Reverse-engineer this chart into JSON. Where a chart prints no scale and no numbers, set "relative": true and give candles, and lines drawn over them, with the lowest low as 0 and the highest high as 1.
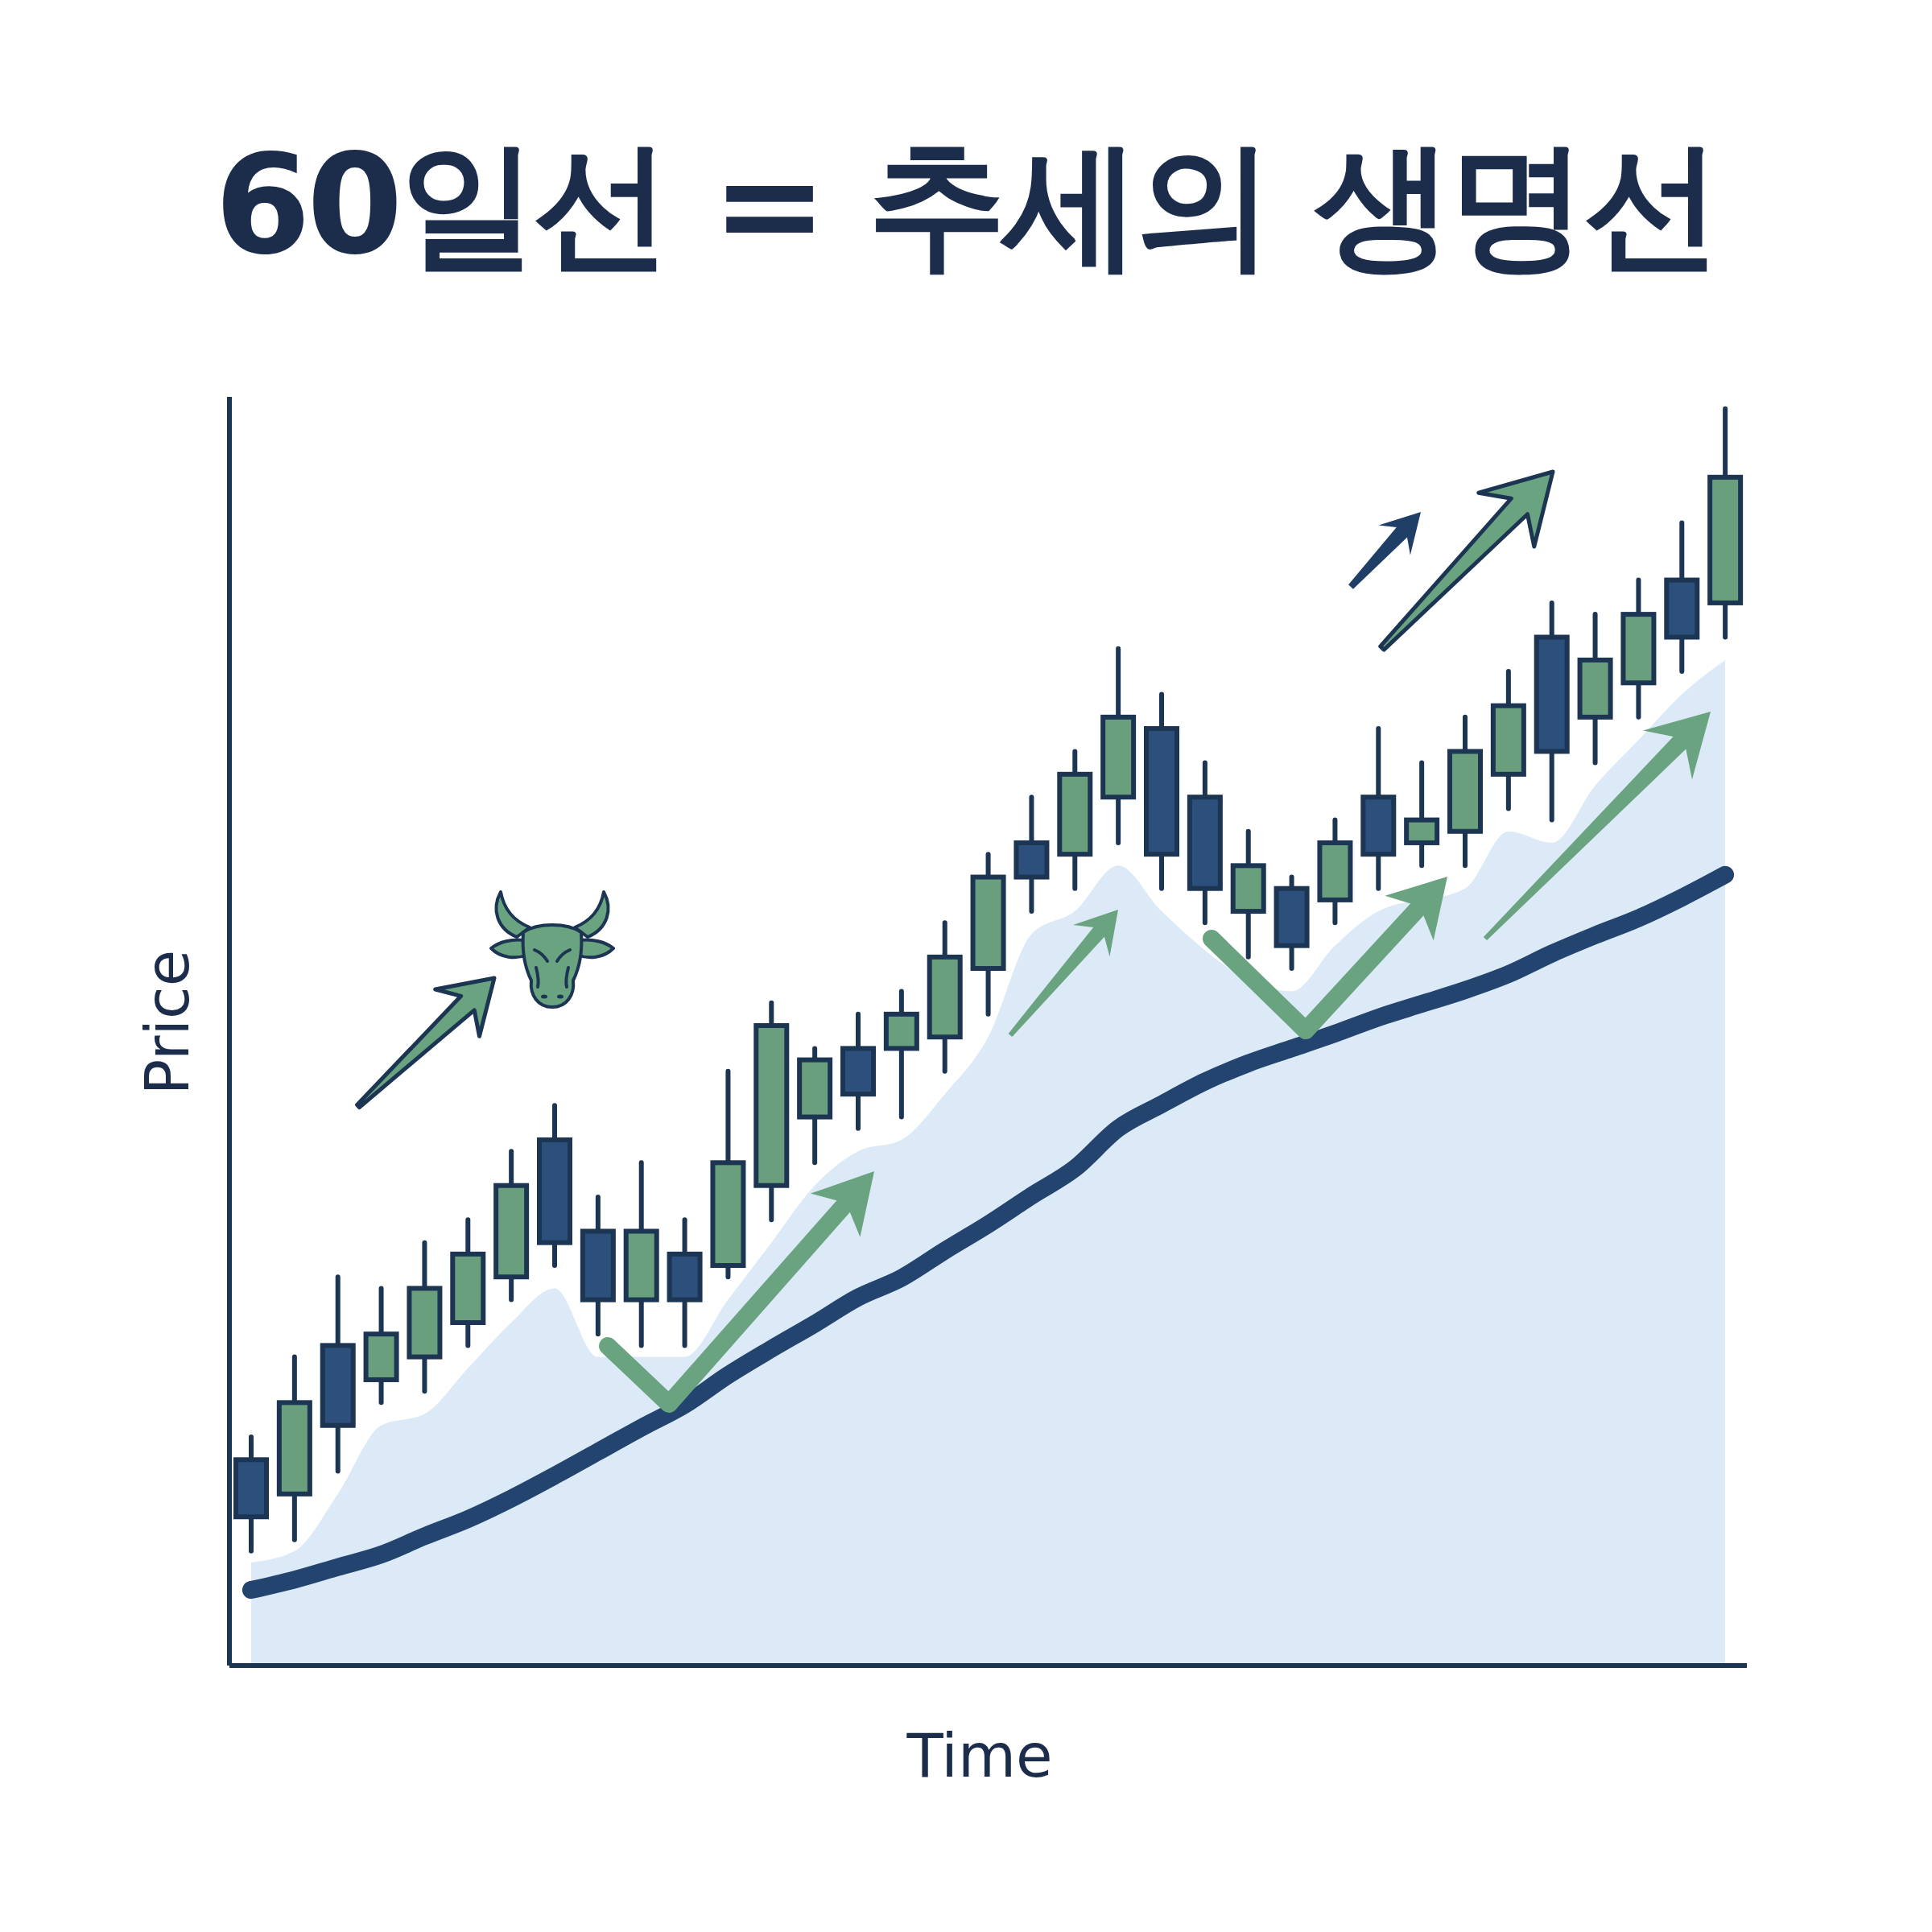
{
  "chart_data": {
    "type": "candlestick",
    "title": "60일선 = 추세의 생명선",
    "xlabel": "Time",
    "ylabel": "Price",
    "relative": true,
    "categories": [
      null,
      null,
      null,
      null,
      null,
      null,
      null,
      null,
      null,
      null,
      null,
      null,
      null,
      null,
      null,
      null,
      null,
      null,
      null,
      null,
      null,
      null,
      null,
      null,
      null,
      null,
      null,
      null,
      null,
      null,
      null,
      null,
      null,
      null,
      null
    ],
    "ohlc": [
      [
        0.08,
        0.1,
        0,
        0.03
      ],
      [
        0.05,
        0.17,
        0.01,
        0.13
      ],
      [
        0.18,
        0.24,
        0.07,
        0.11
      ],
      [
        0.15,
        0.23,
        0.13,
        0.19
      ],
      [
        0.17,
        0.27,
        0.14,
        0.23
      ],
      [
        0.2,
        0.29,
        0.18,
        0.26
      ],
      [
        0.24,
        0.35,
        0.22,
        0.32
      ],
      [
        0.36,
        0.39,
        0.25,
        0.27
      ],
      [
        0.28,
        0.31,
        0.19,
        0.22
      ],
      [
        0.22,
        0.34,
        0.18,
        0.28
      ],
      [
        0.26,
        0.29,
        0.18,
        0.22
      ],
      [
        0.25,
        0.42,
        0.24,
        0.34
      ],
      [
        0.32,
        0.48,
        0.29,
        0.46
      ],
      [
        0.38,
        0.44,
        0.34,
        0.43
      ],
      [
        0.44,
        0.47,
        0.37,
        0.4
      ],
      [
        0.44,
        0.49,
        0.38,
        0.47
      ],
      [
        0.45,
        0.55,
        0.42,
        0.52
      ],
      [
        0.51,
        0.61,
        0.47,
        0.59
      ],
      [
        0.62,
        0.66,
        0.56,
        0.59
      ],
      [
        0.61,
        0.7,
        0.58,
        0.68
      ],
      [
        0.66,
        0.79,
        0.62,
        0.73
      ],
      [
        0.72,
        0.75,
        0.58,
        0.61
      ],
      [
        0.66,
        0.69,
        0.55,
        0.58
      ],
      [
        0.56,
        0.63,
        0.52,
        0.6
      ],
      [
        0.58,
        0.59,
        0.51,
        0.53
      ],
      [
        0.57,
        0.64,
        0.55,
        0.62
      ],
      [
        0.66,
        0.72,
        0.58,
        0.61
      ],
      [
        0.62,
        0.69,
        0.6,
        0.64
      ],
      [
        0.63,
        0.73,
        0.6,
        0.7
      ],
      [
        0.68,
        0.77,
        0.65,
        0.74
      ],
      [
        0.8,
        0.83,
        0.64,
        0.7
      ],
      [
        0.73,
        0.82,
        0.69,
        0.78
      ],
      [
        0.76,
        0.85,
        0.73,
        0.82
      ],
      [
        0.85,
        0.9,
        0.77,
        0.8
      ],
      [
        0.83,
        1,
        0.8,
        0.94
      ]
    ],
    "colors": [
      "#2c4f7c",
      "#6a9f7d",
      "#2c4f7c",
      "#6a9f7d",
      "#6a9f7d",
      "#6a9f7d",
      "#6a9f7d",
      "#2c4f7c",
      "#2c4f7c",
      "#6a9f7d",
      "#2c4f7c",
      "#6a9f7d",
      "#6a9f7d",
      "#6a9f7d",
      "#2c4f7c",
      "#6a9f7d",
      "#6a9f7d",
      "#6a9f7d",
      "#2c4f7c",
      "#6a9f7d",
      "#6a9f7d",
      "#2c4f7c",
      "#2c4f7c",
      "#6a9f7d",
      "#2c4f7c",
      "#6a9f7d",
      "#2c4f7c",
      "#6a9f7d",
      "#6a9f7d",
      "#6a9f7d",
      "#2c4f7c",
      "#6a9f7d",
      "#6a9f7d",
      "#2c4f7c",
      "#6a9f7d"
    ],
    "series": [
      {
        "type": "area",
        "color": "#dce9f7",
        "values": [
          -0.01,
          0,
          0.05,
          0.11,
          0.12,
          0.16,
          0.2,
          0.23,
          0.17,
          0.17,
          0.17,
          0.22,
          0.27,
          0.32,
          0.35,
          0.36,
          0.4,
          0.45,
          0.54,
          0.56,
          0.6,
          0.56,
          null,
          null,
          0.49,
          0.53,
          0.56,
          null,
          0.58,
          0.63,
          0.62,
          0.67,
          0.71,
          0.75,
          0.78
        ]
      },
      {
        "type": "line",
        "color": "#22446e",
        "values": [
          -0.034,
          -0.025,
          -0.014,
          -0.003,
          0.013,
          0.028,
          0.046,
          0.066,
          0.087,
          0.108,
          0.128,
          0.154,
          0.177,
          0.199,
          0.222,
          0.239,
          0.263,
          0.286,
          0.311,
          0.335,
          0.37,
          0.391,
          0.411,
          0.427,
          0.44,
          0.453,
          0.467,
          0.479,
          0.491,
          0.505,
          0.523,
          0.539,
          0.554,
          0.572,
          0.592
        ]
      }
    ]
  }
}
